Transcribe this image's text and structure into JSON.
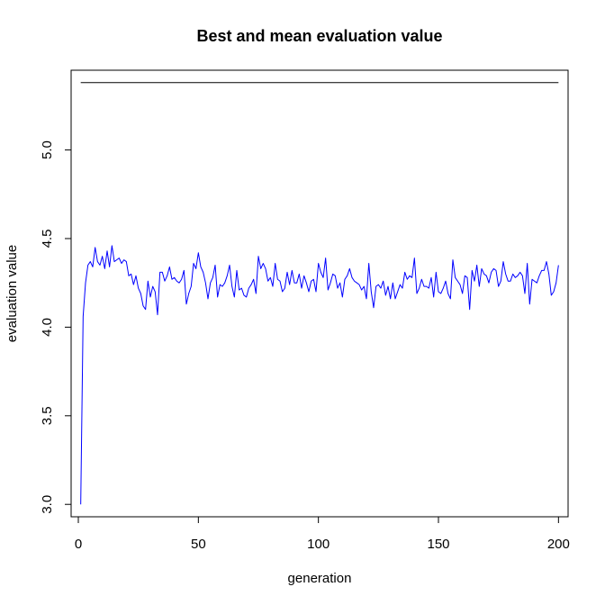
{
  "chart_data": {
    "type": "line",
    "title": "Best and mean evaluation value",
    "xlabel": "generation",
    "ylabel": "evaluation value",
    "xlim": [
      -3,
      204
    ],
    "ylim": [
      2.93,
      5.45
    ],
    "xticks": [
      0,
      50,
      100,
      150,
      200
    ],
    "yticks": [
      3.0,
      3.5,
      4.0,
      4.5,
      5.0
    ],
    "ytick_labels": [
      "3.0",
      "3.5",
      "4.0",
      "4.5",
      "5.0"
    ],
    "grid": false,
    "legend": "none",
    "series": [
      {
        "role": "best",
        "color": "#000000",
        "x": [
          1,
          200
        ],
        "y": [
          5.38,
          5.38
        ]
      },
      {
        "role": "mean",
        "color": "#0000ff",
        "x": [
          1,
          2,
          3,
          4,
          5,
          6,
          7,
          8,
          9,
          10,
          11,
          12,
          13,
          14,
          15,
          16,
          17,
          18,
          19,
          20,
          21,
          22,
          23,
          24,
          25,
          26,
          27,
          28,
          29,
          30,
          31,
          32,
          33,
          34,
          35,
          36,
          37,
          38,
          39,
          40,
          41,
          42,
          43,
          44,
          45,
          46,
          47,
          48,
          49,
          50,
          51,
          52,
          53,
          54,
          55,
          56,
          57,
          58,
          59,
          60,
          61,
          62,
          63,
          64,
          65,
          66,
          67,
          68,
          69,
          70,
          71,
          72,
          73,
          74,
          75,
          76,
          77,
          78,
          79,
          80,
          81,
          82,
          83,
          84,
          85,
          86,
          87,
          88,
          89,
          90,
          91,
          92,
          93,
          94,
          95,
          96,
          97,
          98,
          99,
          100,
          101,
          102,
          103,
          104,
          105,
          106,
          107,
          108,
          109,
          110,
          111,
          112,
          113,
          114,
          115,
          116,
          117,
          118,
          119,
          120,
          121,
          122,
          123,
          124,
          125,
          126,
          127,
          128,
          129,
          130,
          131,
          132,
          133,
          134,
          135,
          136,
          137,
          138,
          139,
          140,
          141,
          142,
          143,
          144,
          145,
          146,
          147,
          148,
          149,
          150,
          151,
          152,
          153,
          154,
          155,
          156,
          157,
          158,
          159,
          160,
          161,
          162,
          163,
          164,
          165,
          166,
          167,
          168,
          169,
          170,
          171,
          172,
          173,
          174,
          175,
          176,
          177,
          178,
          179,
          180,
          181,
          182,
          183,
          184,
          185,
          186,
          187,
          188,
          189,
          190,
          191,
          192,
          193,
          194,
          195,
          196,
          197,
          198,
          199,
          200
        ],
        "y": [
          3.0,
          4.06,
          4.25,
          4.35,
          4.37,
          4.34,
          4.45,
          4.37,
          4.35,
          4.4,
          4.33,
          4.43,
          4.34,
          4.46,
          4.37,
          4.38,
          4.39,
          4.36,
          4.38,
          4.37,
          4.29,
          4.3,
          4.24,
          4.29,
          4.22,
          4.19,
          4.12,
          4.1,
          4.26,
          4.17,
          4.23,
          4.2,
          4.07,
          4.31,
          4.31,
          4.26,
          4.29,
          4.34,
          4.27,
          4.28,
          4.26,
          4.25,
          4.27,
          4.32,
          4.13,
          4.19,
          4.23,
          4.36,
          4.33,
          4.42,
          4.34,
          4.31,
          4.25,
          4.16,
          4.25,
          4.28,
          4.35,
          4.17,
          4.24,
          4.23,
          4.25,
          4.29,
          4.35,
          4.23,
          4.17,
          4.32,
          4.21,
          4.22,
          4.18,
          4.17,
          4.22,
          4.24,
          4.27,
          4.19,
          4.4,
          4.33,
          4.36,
          4.33,
          4.26,
          4.28,
          4.23,
          4.36,
          4.27,
          4.26,
          4.2,
          4.22,
          4.31,
          4.24,
          4.32,
          4.25,
          4.25,
          4.3,
          4.22,
          4.29,
          4.25,
          4.2,
          4.26,
          4.27,
          4.2,
          4.36,
          4.31,
          4.28,
          4.39,
          4.21,
          4.25,
          4.3,
          4.29,
          4.22,
          4.25,
          4.17,
          4.27,
          4.29,
          4.33,
          4.28,
          4.26,
          4.25,
          4.24,
          4.21,
          4.23,
          4.16,
          4.36,
          4.2,
          4.11,
          4.23,
          4.24,
          4.22,
          4.26,
          4.18,
          4.23,
          4.16,
          4.25,
          4.16,
          4.2,
          4.24,
          4.22,
          4.31,
          4.27,
          4.29,
          4.28,
          4.39,
          4.19,
          4.22,
          4.27,
          4.23,
          4.23,
          4.22,
          4.28,
          4.17,
          4.31,
          4.2,
          4.19,
          4.22,
          4.26,
          4.19,
          4.16,
          4.38,
          4.28,
          4.26,
          4.24,
          4.19,
          4.29,
          4.28,
          4.1,
          4.32,
          4.26,
          4.35,
          4.23,
          4.33,
          4.3,
          4.29,
          4.25,
          4.31,
          4.33,
          4.32,
          4.23,
          4.26,
          4.37,
          4.3,
          4.26,
          4.26,
          4.3,
          4.28,
          4.29,
          4.31,
          4.29,
          4.19,
          4.36,
          4.13,
          4.27,
          4.26,
          4.25,
          4.29,
          4.32,
          4.32,
          4.37,
          4.3,
          4.18,
          4.2,
          4.25,
          4.35
        ]
      }
    ]
  }
}
